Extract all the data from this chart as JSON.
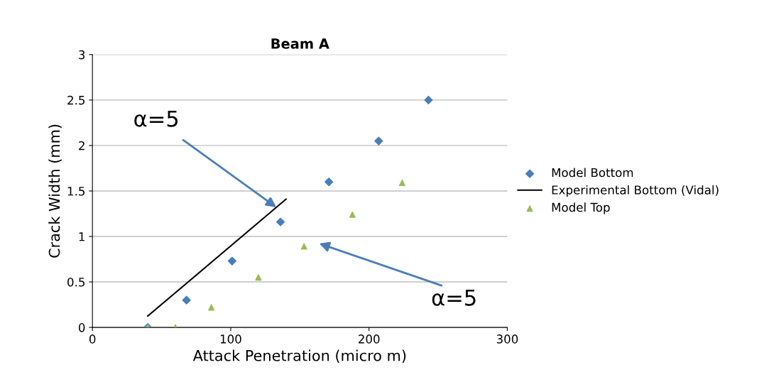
{
  "chart_data": {
    "type": "scatter",
    "title": "Beam A",
    "xlabel": "Attack Penetration (micro m)",
    "ylabel": "Crack Width (mm)",
    "xlim": [
      0,
      300
    ],
    "xticks": [
      0,
      100,
      200,
      300
    ],
    "ylim": [
      0,
      3
    ],
    "yticks": [
      0,
      0.5,
      1,
      1.5,
      2,
      2.5,
      3
    ],
    "grid": "y",
    "legend": "right",
    "series": [
      {
        "name": "Model Bottom",
        "color": "#4a7ebb",
        "marker": "diamond",
        "x": [
          40,
          68,
          101,
          136,
          171,
          207,
          243
        ],
        "values": [
          0,
          0.3,
          0.73,
          1.16,
          1.6,
          2.05,
          2.5
        ]
      },
      {
        "name": "Experimental Bottom (Vidal)",
        "type": "line",
        "color": "#000000",
        "marker": "none",
        "x": [
          40,
          140
        ],
        "values": [
          0.125,
          1.41
        ]
      },
      {
        "name": "Model Top",
        "color": "#9bbb59",
        "marker": "triangle",
        "x": [
          40,
          60,
          86,
          120,
          153,
          188,
          224
        ],
        "values": [
          0,
          0,
          0.22,
          0.55,
          0.89,
          1.24,
          1.59
        ]
      }
    ],
    "annotations": [
      {
        "text": "α=5",
        "x": 133,
        "y": 1.32
      },
      "α=5"
    ]
  }
}
